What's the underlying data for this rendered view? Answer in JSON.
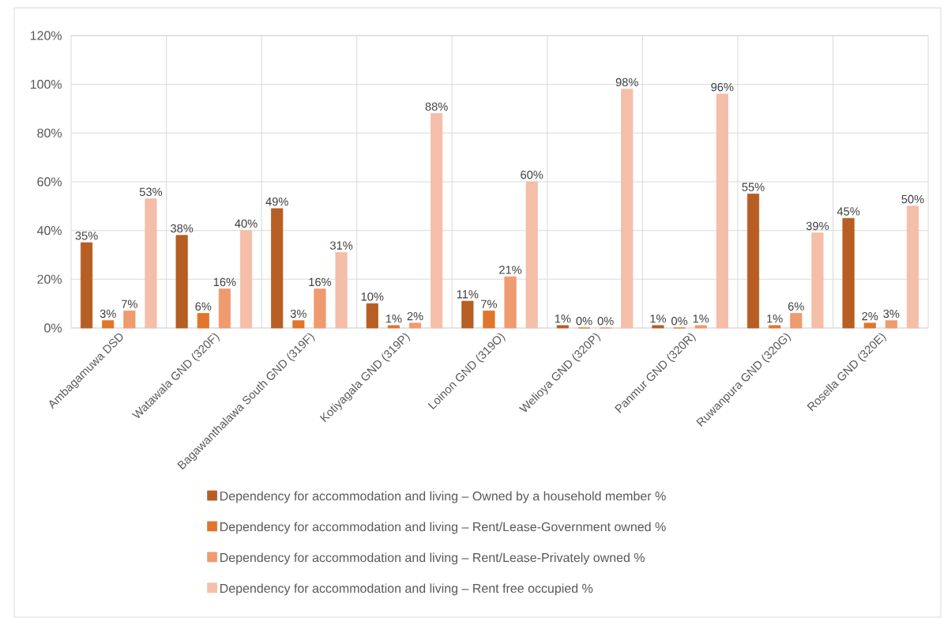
{
  "chart_data": {
    "type": "bar",
    "categories": [
      "Ambagamuwa DSD",
      "Watawala GND (320F)",
      "Bagawanthalawa South GND (319F)",
      "Kotiyagala GND (319P)",
      "Loinon GND (319O)",
      "Welioya GND (320P)",
      "Panmur GND (320R)",
      "Ruwanpura GND (320G)",
      "Rosella GND (320E)"
    ],
    "series": [
      {
        "name": "Dependency for accommodation and living – Owned by a household member %",
        "color": "#B65E23",
        "values": [
          35,
          38,
          49,
          10,
          11,
          1,
          1,
          55,
          45
        ],
        "value_labels": [
          "35%",
          "38%",
          "49%",
          "10%",
          "11%",
          "1%",
          "1%",
          "55%",
          "45%"
        ]
      },
      {
        "name": "Dependency for accommodation and living – Rent/Lease-Government owned %",
        "color": "#E0762B",
        "values": [
          3,
          6,
          3,
          1,
          7,
          0,
          0,
          1,
          2
        ],
        "value_labels": [
          "3%",
          "6%",
          "3%",
          "1%",
          "7%",
          "0%",
          "0%",
          "1%",
          "2%"
        ]
      },
      {
        "name": "Dependency for accommodation and living – Rent/Lease-Privately owned %",
        "color": "#EE9B6F",
        "values": [
          7,
          16,
          16,
          2,
          21,
          0,
          1,
          6,
          3
        ],
        "value_labels": [
          "7%",
          "16%",
          "16%",
          "2%",
          "21%",
          "0%",
          "1%",
          "6%",
          "3%"
        ]
      },
      {
        "name": "Dependency for accommodation and living – Rent free occupied %",
        "color": "#F4BEA8",
        "values": [
          53,
          40,
          31,
          88,
          60,
          98,
          96,
          39,
          50
        ],
        "value_labels": [
          "53%",
          "40%",
          "31%",
          "88%",
          "60%",
          "98%",
          "96%",
          "39%",
          "50%"
        ]
      }
    ],
    "ylim": [
      0,
      120
    ],
    "yticks": [
      {
        "value": 0,
        "label": "0%"
      },
      {
        "value": 20,
        "label": "20%"
      },
      {
        "value": 40,
        "label": "40%"
      },
      {
        "value": 60,
        "label": "60%"
      },
      {
        "value": 80,
        "label": "80%"
      },
      {
        "value": 100,
        "label": "100%"
      },
      {
        "value": 120,
        "label": "120%"
      }
    ],
    "grid": true,
    "legend": "bottom"
  }
}
